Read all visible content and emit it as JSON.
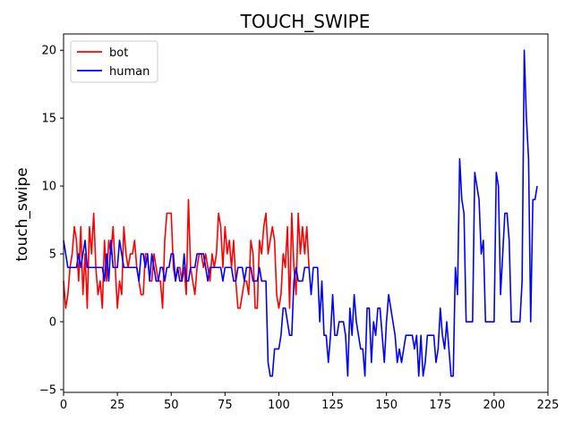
{
  "chart_data": {
    "type": "line",
    "title": "TOUCH_SWIPE",
    "xlabel": "",
    "ylabel": "touch_swipe",
    "xlim": [
      0,
      225
    ],
    "ylim": [
      -5.2,
      21.2
    ],
    "xticks": [
      0,
      25,
      50,
      75,
      100,
      125,
      150,
      175,
      200,
      225
    ],
    "yticks": [
      -5,
      0,
      5,
      10,
      15,
      20
    ],
    "grid": false,
    "legend": "top-left",
    "series": [
      {
        "name": "bot",
        "color": "#ff0000",
        "values": [
          3,
          1,
          2,
          4,
          5,
          7,
          6,
          3,
          7,
          2,
          5,
          1,
          7,
          5,
          8,
          4,
          2,
          3,
          1,
          6,
          3,
          6,
          5,
          7,
          4,
          1,
          3,
          2,
          7,
          5,
          4,
          5,
          5,
          6,
          4,
          3,
          2,
          2,
          5,
          5,
          3,
          3,
          5,
          4,
          3,
          3,
          1,
          6,
          8,
          8,
          8,
          4,
          3,
          4,
          4,
          3,
          4,
          2,
          9,
          4,
          3,
          2,
          4,
          5,
          5,
          4,
          5,
          4,
          3,
          5,
          4,
          5,
          8,
          7,
          4,
          7,
          5,
          6,
          4,
          6,
          3,
          1,
          1,
          2,
          3,
          3,
          2,
          6,
          5,
          1,
          1,
          6,
          5,
          7,
          8,
          5,
          6,
          7,
          6,
          2,
          1,
          2,
          5,
          4,
          7,
          1,
          8,
          4,
          2,
          8,
          5,
          7,
          5,
          7,
          4
        ]
      },
      {
        "name": "human",
        "color": "#0000ff",
        "values": [
          6,
          5,
          4,
          4,
          4,
          4,
          4,
          5,
          4,
          5,
          6,
          4,
          4,
          4,
          4,
          4,
          4,
          4,
          4,
          3,
          5,
          3,
          6,
          4,
          4,
          4,
          6,
          5,
          4,
          4,
          4,
          4,
          4,
          4,
          4,
          3,
          5,
          5,
          4,
          5,
          3,
          5,
          4,
          3,
          3,
          4,
          4,
          3,
          4,
          4,
          5,
          5,
          3,
          4,
          3,
          3,
          5,
          3,
          3,
          4,
          4,
          4,
          5,
          5,
          5,
          5,
          4,
          3,
          4,
          4,
          4,
          4,
          4,
          4,
          3,
          4,
          4,
          4,
          4,
          3,
          3,
          4,
          4,
          4,
          3,
          4,
          4,
          4,
          3,
          3,
          3,
          4,
          3,
          3,
          3,
          -3,
          -4,
          -4,
          -2,
          -2,
          -2,
          -1,
          1,
          1,
          0,
          -1,
          -1,
          3,
          4,
          3,
          3,
          3,
          4,
          4,
          4,
          2,
          4,
          4,
          4,
          0,
          3,
          -1,
          -1,
          -3,
          -1,
          2,
          -1,
          -1,
          0,
          0,
          0,
          -1,
          -4,
          1,
          -1,
          2,
          0,
          -1,
          -2,
          -2,
          -4,
          1,
          1,
          -3,
          0,
          -1,
          1,
          1,
          -1,
          -3,
          0,
          2,
          1,
          0,
          -1,
          -3,
          -2,
          -3,
          -2,
          -1,
          -1,
          -1,
          -1,
          -2,
          -1,
          -4,
          -1,
          -4,
          -3,
          -1,
          -1,
          -1,
          -1,
          -3,
          -2,
          1,
          -1,
          -2,
          0,
          -2,
          -4,
          -4,
          4,
          2,
          12,
          9,
          8,
          0,
          0,
          0,
          0,
          11,
          10,
          9,
          5,
          6,
          0,
          0,
          0,
          0,
          0,
          11,
          10,
          2,
          5,
          8,
          8,
          6,
          0,
          0,
          0,
          0,
          0,
          3,
          20,
          15,
          12,
          0,
          9,
          9,
          10
        ]
      }
    ]
  }
}
